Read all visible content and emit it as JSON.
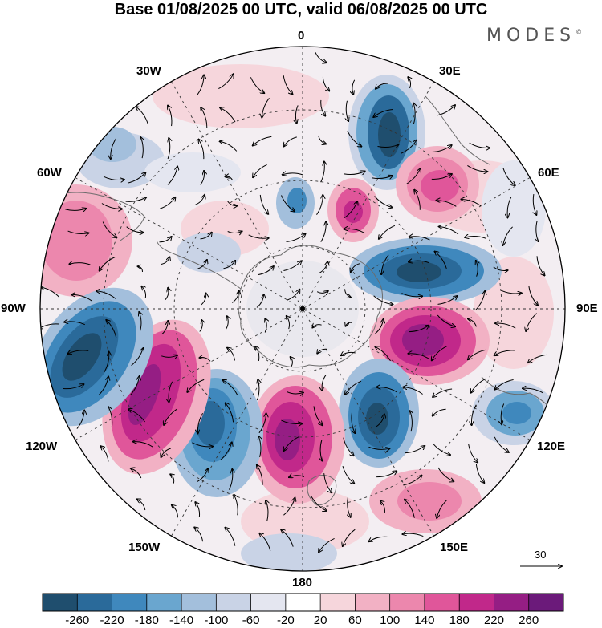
{
  "title": "Base 01/08/2025 00 UTC, valid 06/08/2025 00 UTC",
  "brand": {
    "name": "MODES",
    "mark": "©"
  },
  "longitude_labels": {
    "lon_0": "0",
    "lon_30e": "30E",
    "lon_60e": "60E",
    "lon_90e": "90E",
    "lon_120e": "120E",
    "lon_150e": "150E",
    "lon_180": "180",
    "lon_150w": "150W",
    "lon_120w": "120W",
    "lon_90w": "90W",
    "lon_60w": "60W",
    "lon_30w": "30W"
  },
  "vector_scale": {
    "label": "30"
  },
  "colorbar": {
    "ticks": [
      "-260",
      "-220",
      "-180",
      "-140",
      "-100",
      "-60",
      "-20",
      "20",
      "60",
      "100",
      "140",
      "180",
      "220",
      "260"
    ],
    "colors": [
      "#1f4e6e",
      "#2a6a9a",
      "#3f88bd",
      "#6aa6cf",
      "#a3bfdc",
      "#c9d3e6",
      "#e4e6f0",
      "#ffffff",
      "#f6d6dc",
      "#f2b1c4",
      "#ec87ad",
      "#e0569a",
      "#c1288a",
      "#951e84",
      "#6b1a7a"
    ]
  },
  "colors": {
    "map_base": "#ececef",
    "grid": "#333333",
    "coast": "#6b6b6b",
    "arrow": "#000000"
  },
  "anomalies": [
    {
      "name": "blue-30e",
      "value": -230,
      "color": "#2a6a9a"
    },
    {
      "name": "blue-30e-core",
      "value": -260,
      "color": "#1f4e6e"
    },
    {
      "name": "pink-50e",
      "value": 160,
      "color": "#e0569a"
    },
    {
      "name": "pink-15e",
      "value": 170,
      "color": "#c1288a"
    },
    {
      "name": "blue-60e",
      "value": -240,
      "color": "#1f4e6e"
    },
    {
      "name": "purple-100e",
      "value": 250,
      "color": "#951e84"
    },
    {
      "name": "blue-130e",
      "value": -240,
      "color": "#1f4e6e"
    },
    {
      "name": "blue-110e",
      "value": -180,
      "color": "#3f88bd"
    },
    {
      "name": "pink-150e",
      "value": 120,
      "color": "#ec87ad"
    },
    {
      "name": "purple-175e",
      "value": 240,
      "color": "#951e84"
    },
    {
      "name": "blue-150w",
      "value": -200,
      "color": "#2a6a9a"
    },
    {
      "name": "purple-120w",
      "value": 240,
      "color": "#951e84"
    },
    {
      "name": "blue-100w",
      "value": -260,
      "color": "#1f4e6e"
    },
    {
      "name": "pink-70w",
      "value": 120,
      "color": "#ec87ad"
    },
    {
      "name": "blue-5w",
      "value": -160,
      "color": "#3f88bd"
    },
    {
      "name": "blue-40w",
      "value": -110,
      "color": "#a3bfdc"
    }
  ]
}
